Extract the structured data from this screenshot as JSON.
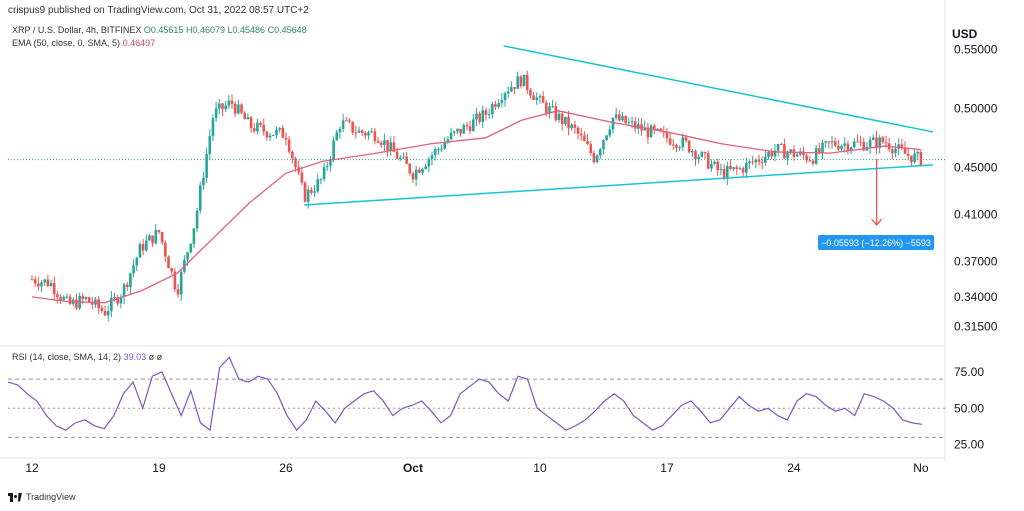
{
  "header": {
    "published": "crispus9 published on TradingView.com, Oct 31, 2022 08:57 UTC+2"
  },
  "legend": {
    "symbol": "XRP / U.S. Dollar, 4h, BITFINEX",
    "o": "O0.45615",
    "h": "H0.46079",
    "l": "L0.45486",
    "c": "C0.45648",
    "ema_label": "EMA (50, close, 0, SMA, 5)",
    "ema_value": "0.46497",
    "rsi_label": "RSI (14, close, SMA, 14, 2)",
    "rsi_value": "39.03",
    "rsi_extra": "ø ø"
  },
  "footer": {
    "brand": "TradingView"
  },
  "colors": {
    "up": "#26a69a",
    "down": "#ef5350",
    "ema": "#e0607e",
    "rsi": "#7e57c2",
    "trend": "#17c3d6",
    "measure": "#ef5350",
    "badge": "#2196f3"
  },
  "chart_data": [
    {
      "type": "candlestick",
      "title": "XRP / U.S. Dollar, 4h, BITFINEX",
      "ylabel": "USD",
      "y_ticks": [
        "0.55000",
        "0.50000",
        "0.45000",
        "0.41000",
        "0.37000",
        "0.34000",
        "0.31500"
      ],
      "x_ticks": [
        "12",
        "19",
        "26",
        "Oct",
        "10",
        "17",
        "24",
        "No"
      ],
      "ylim": [
        0.3,
        0.575
      ],
      "last_price": 0.45648,
      "close_path": [
        {
          "d": "Sep 12",
          "c": 0.355
        },
        {
          "d": "Sep 13",
          "c": 0.352
        },
        {
          "d": "Sep 14",
          "c": 0.333
        },
        {
          "d": "Sep 15",
          "c": 0.338
        },
        {
          "d": "Sep 16",
          "c": 0.327
        },
        {
          "d": "Sep 17",
          "c": 0.345
        },
        {
          "d": "Sep 18",
          "c": 0.382
        },
        {
          "d": "Sep 19",
          "c": 0.395
        },
        {
          "d": "Sep 20",
          "c": 0.345
        },
        {
          "d": "Sep 21",
          "c": 0.405
        },
        {
          "d": "Sep 22",
          "c": 0.495
        },
        {
          "d": "Sep 23",
          "c": 0.505
        },
        {
          "d": "Sep 24",
          "c": 0.485
        },
        {
          "d": "Sep 25",
          "c": 0.48
        },
        {
          "d": "Sep 26",
          "c": 0.478
        },
        {
          "d": "Sep 27",
          "c": 0.425
        },
        {
          "d": "Sep 28",
          "c": 0.44
        },
        {
          "d": "Sep 29",
          "c": 0.488
        },
        {
          "d": "Sep 30",
          "c": 0.48
        },
        {
          "d": "Oct 1",
          "c": 0.478
        },
        {
          "d": "Oct 3",
          "c": 0.445
        },
        {
          "d": "Oct 5",
          "c": 0.475
        },
        {
          "d": "Oct 7",
          "c": 0.495
        },
        {
          "d": "Oct 8",
          "c": 0.515
        },
        {
          "d": "Oct 9",
          "c": 0.525
        },
        {
          "d": "Oct 10",
          "c": 0.505
        },
        {
          "d": "Oct 12",
          "c": 0.48
        },
        {
          "d": "Oct 13",
          "c": 0.458
        },
        {
          "d": "Oct 14",
          "c": 0.492
        },
        {
          "d": "Oct 16",
          "c": 0.48
        },
        {
          "d": "Oct 18",
          "c": 0.47
        },
        {
          "d": "Oct 20",
          "c": 0.445
        },
        {
          "d": "Oct 21",
          "c": 0.448
        },
        {
          "d": "Oct 23",
          "c": 0.465
        },
        {
          "d": "Oct 25",
          "c": 0.458
        },
        {
          "d": "Oct 26",
          "c": 0.47
        },
        {
          "d": "Oct 28",
          "c": 0.47
        },
        {
          "d": "Oct 29",
          "c": 0.472
        },
        {
          "d": "Oct 30",
          "c": 0.462
        },
        {
          "d": "Oct 31",
          "c": 0.4565
        }
      ],
      "ema50": [
        {
          "d": "Sep 12",
          "v": 0.34
        },
        {
          "d": "Sep 14",
          "v": 0.336
        },
        {
          "d": "Sep 16",
          "v": 0.335
        },
        {
          "d": "Sep 18",
          "v": 0.345
        },
        {
          "d": "Sep 20",
          "v": 0.36
        },
        {
          "d": "Sep 22",
          "v": 0.39
        },
        {
          "d": "Sep 24",
          "v": 0.42
        },
        {
          "d": "Sep 26",
          "v": 0.445
        },
        {
          "d": "Sep 28",
          "v": 0.455
        },
        {
          "d": "Oct 1",
          "v": 0.462
        },
        {
          "d": "Oct 4",
          "v": 0.47
        },
        {
          "d": "Oct 7",
          "v": 0.475
        },
        {
          "d": "Oct 9",
          "v": 0.49
        },
        {
          "d": "Oct 11",
          "v": 0.498
        },
        {
          "d": "Oct 14",
          "v": 0.488
        },
        {
          "d": "Oct 17",
          "v": 0.48
        },
        {
          "d": "Oct 20",
          "v": 0.47
        },
        {
          "d": "Oct 23",
          "v": 0.463
        },
        {
          "d": "Oct 26",
          "v": 0.462
        },
        {
          "d": "Oct 29",
          "v": 0.468
        },
        {
          "d": "Oct 31",
          "v": 0.465
        }
      ],
      "trendlines": [
        {
          "name": "upper",
          "from": {
            "d": "Oct 8",
            "v": 0.553
          },
          "to": {
            "d": "Oct 31",
            "v": 0.48
          }
        },
        {
          "name": "lower",
          "from": {
            "d": "Sep 27",
            "v": 0.418
          },
          "to": {
            "d": "Oct 31",
            "v": 0.452
          }
        }
      ],
      "measure": {
        "from": {
          "d": "Oct 29",
          "v": 0.457
        },
        "to": {
          "d": "Oct 29",
          "v": 0.401
        },
        "label": "−0.05593 (−12.26%) −5593"
      }
    },
    {
      "type": "line",
      "title": "RSI (14, close, SMA, 14, 2)",
      "y_ticks": [
        "75.00",
        "50.00",
        "25.00"
      ],
      "ylim": [
        20,
        90
      ],
      "bands": [
        70,
        50,
        30
      ],
      "series": [
        {
          "values": [
            68,
            66,
            60,
            55,
            45,
            38,
            35,
            40,
            42,
            38,
            36,
            45,
            60,
            68,
            50,
            72,
            75,
            60,
            45,
            62,
            40,
            35,
            78,
            85,
            70,
            68,
            72,
            70,
            60,
            45,
            35,
            42,
            55,
            48,
            40,
            50,
            55,
            60,
            62,
            55,
            45,
            50,
            52,
            55,
            48,
            40,
            45,
            60,
            65,
            70,
            68,
            60,
            55,
            72,
            70,
            50,
            45,
            40,
            35,
            38,
            42,
            48,
            55,
            60,
            55,
            45,
            40,
            35,
            38,
            45,
            52,
            55,
            48,
            40,
            42,
            50,
            58,
            52,
            48,
            50,
            45,
            42,
            55,
            60,
            58,
            52,
            48,
            50,
            45,
            60,
            58,
            55,
            50,
            42,
            40,
            39
          ]
        }
      ]
    }
  ]
}
